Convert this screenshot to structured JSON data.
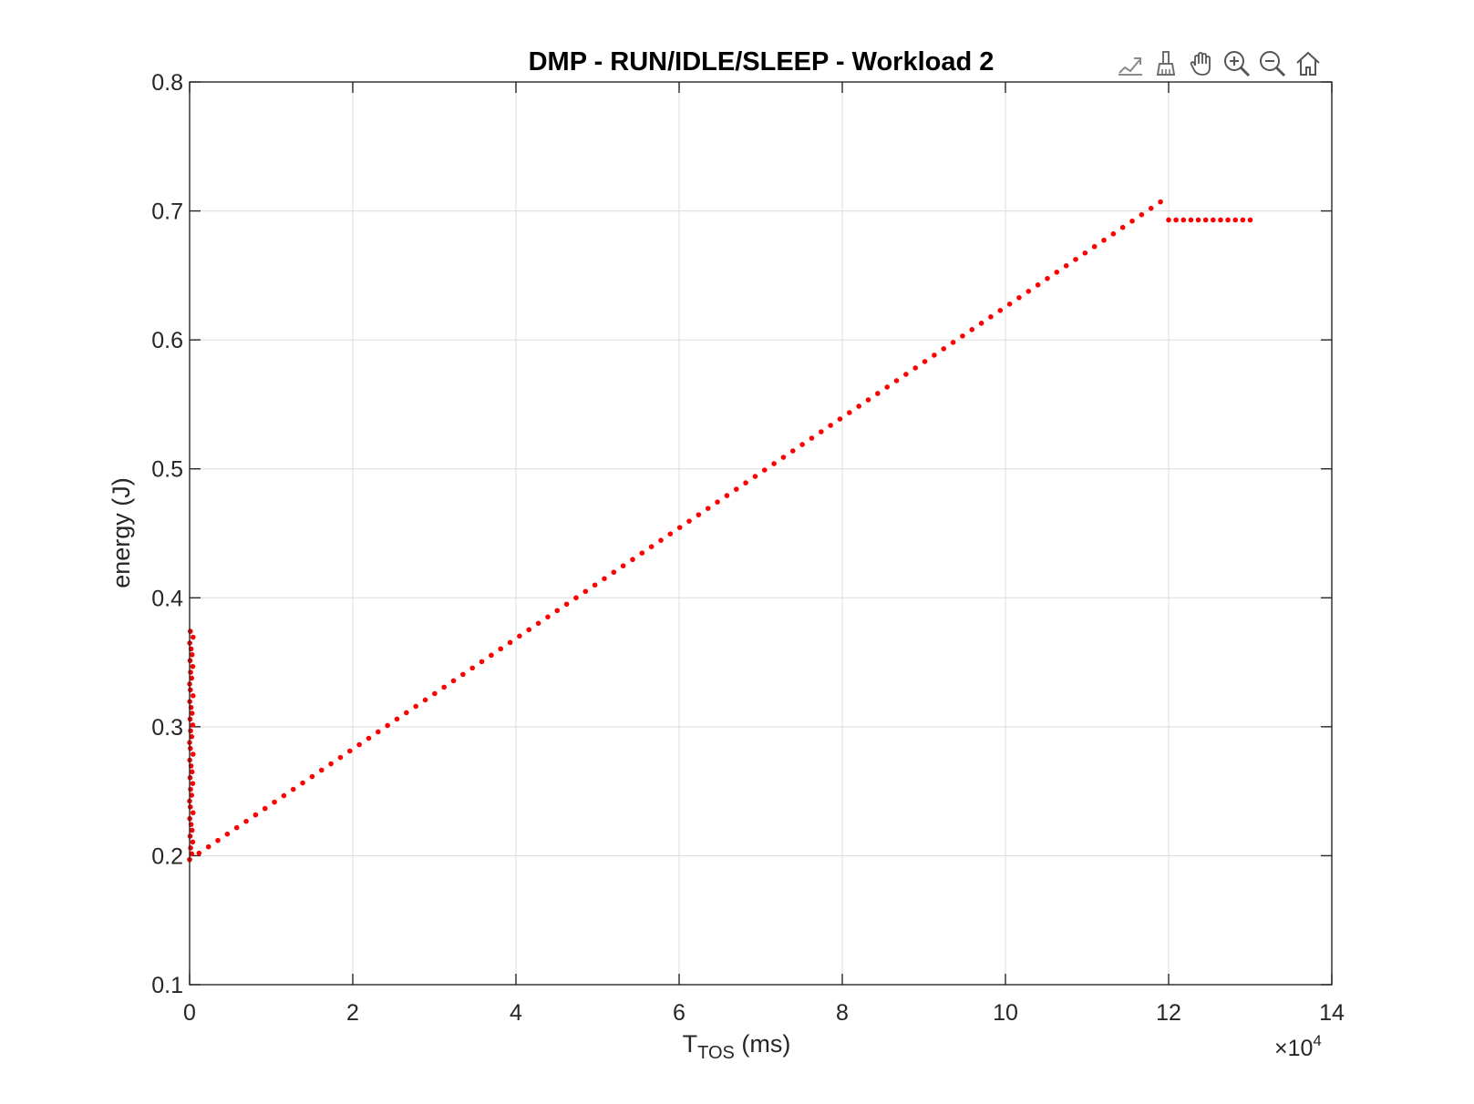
{
  "chart_data": {
    "type": "scatter",
    "title": "DMP - RUN/IDLE/SLEEP - Workload 2",
    "xlabel_main": "T",
    "xlabel_sub": "TOS",
    "xlabel_unit": " (ms)",
    "ylabel": "energy (J)",
    "x_exponent_prefix": "×10",
    "x_exponent": "4",
    "x_scale_factor": 10000,
    "xlim": [
      0,
      140000
    ],
    "ylim": [
      0.1,
      0.8
    ],
    "x_ticks": [
      0,
      20000,
      40000,
      60000,
      80000,
      100000,
      120000,
      140000
    ],
    "x_tick_labels": [
      "0",
      "2",
      "4",
      "6",
      "8",
      "10",
      "12",
      "14"
    ],
    "y_ticks": [
      0.1,
      0.2,
      0.3,
      0.4,
      0.5,
      0.6,
      0.7,
      0.8
    ],
    "y_tick_labels": [
      "0.1",
      "0.2",
      "0.3",
      "0.4",
      "0.5",
      "0.6",
      "0.7",
      "0.8"
    ],
    "grid": true,
    "marker_color": "#ff0000",
    "series": [
      {
        "segments": [
          {
            "description": "vertical cluster near x=0",
            "x": [
              0,
              0
            ],
            "y": [
              0.197,
              0.374
            ],
            "count": 40
          },
          {
            "description": "linear ramp",
            "x": [
              0,
              119000
            ],
            "y": [
              0.197,
              0.707
            ],
            "count": 104
          },
          {
            "description": "flat tail",
            "x": [
              120000,
              130000
            ],
            "y": [
              0.693,
              0.693
            ],
            "count": 12
          }
        ]
      }
    ]
  },
  "toolbar": {
    "icons": [
      "export-icon",
      "brush-icon",
      "pan-hand-icon",
      "zoom-in-icon",
      "zoom-out-icon",
      "home-icon"
    ]
  },
  "colors": {
    "axis": "#262626",
    "grid": "#dcdcdc",
    "marker": "#ff0000"
  }
}
